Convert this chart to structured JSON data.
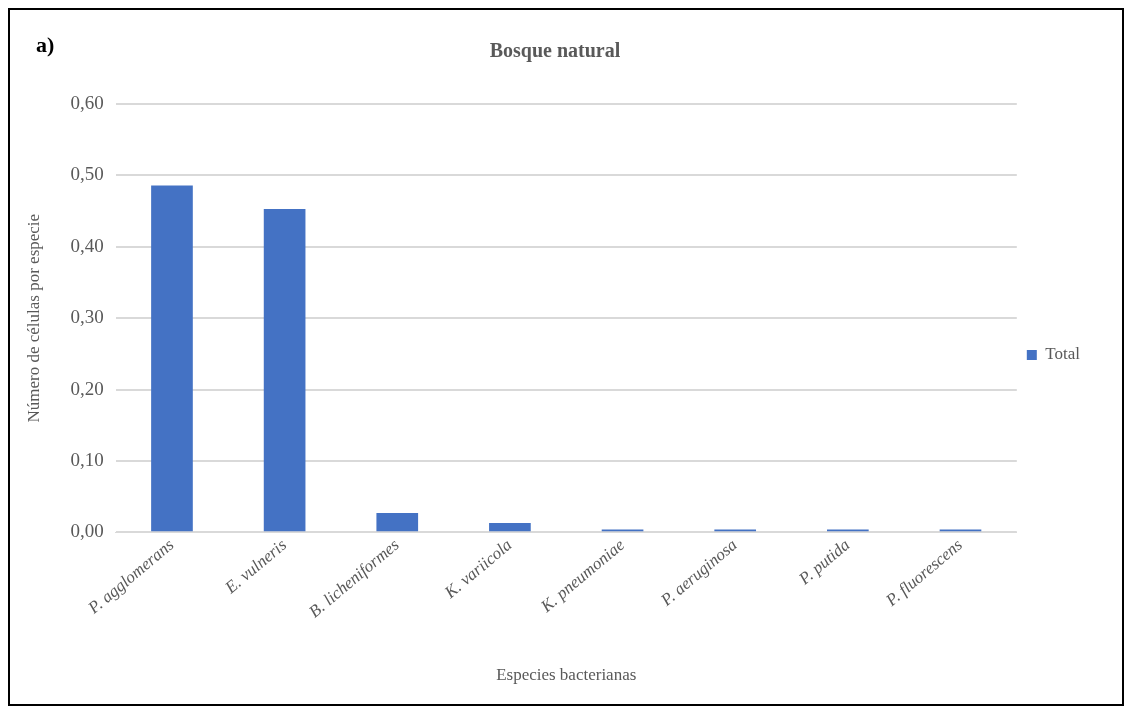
{
  "chart_data": {
    "type": "bar",
    "title": "Bosque natural",
    "xlabel": "Especies bacterianas",
    "ylabel": "Número de células por especie",
    "categories": [
      "P. agglomerans",
      "E. vulneris",
      "B. licheniformes",
      "K. variicola",
      "K. pneumoniae",
      "P. aeruginosa",
      "P. putida",
      "P. fluorescens"
    ],
    "series": [
      {
        "name": "Total",
        "color": "#4472c4",
        "values": [
          0.486,
          0.453,
          0.027,
          0.013,
          0.004,
          0.004,
          0.004,
          0.004
        ]
      }
    ],
    "ylim": [
      0,
      0.6
    ],
    "yticks": [
      {
        "value": 0,
        "label": "0,00"
      },
      {
        "value": 0.1,
        "label": "0,10"
      },
      {
        "value": 0.2,
        "label": "0,20"
      },
      {
        "value": 0.3,
        "label": "0,30"
      },
      {
        "value": 0.4,
        "label": "0,40"
      },
      {
        "value": 0.5,
        "label": "0,50"
      },
      {
        "value": 0.6,
        "label": "0,60"
      }
    ],
    "grid": "y",
    "legend": "right",
    "annotations": [
      "a)"
    ]
  }
}
